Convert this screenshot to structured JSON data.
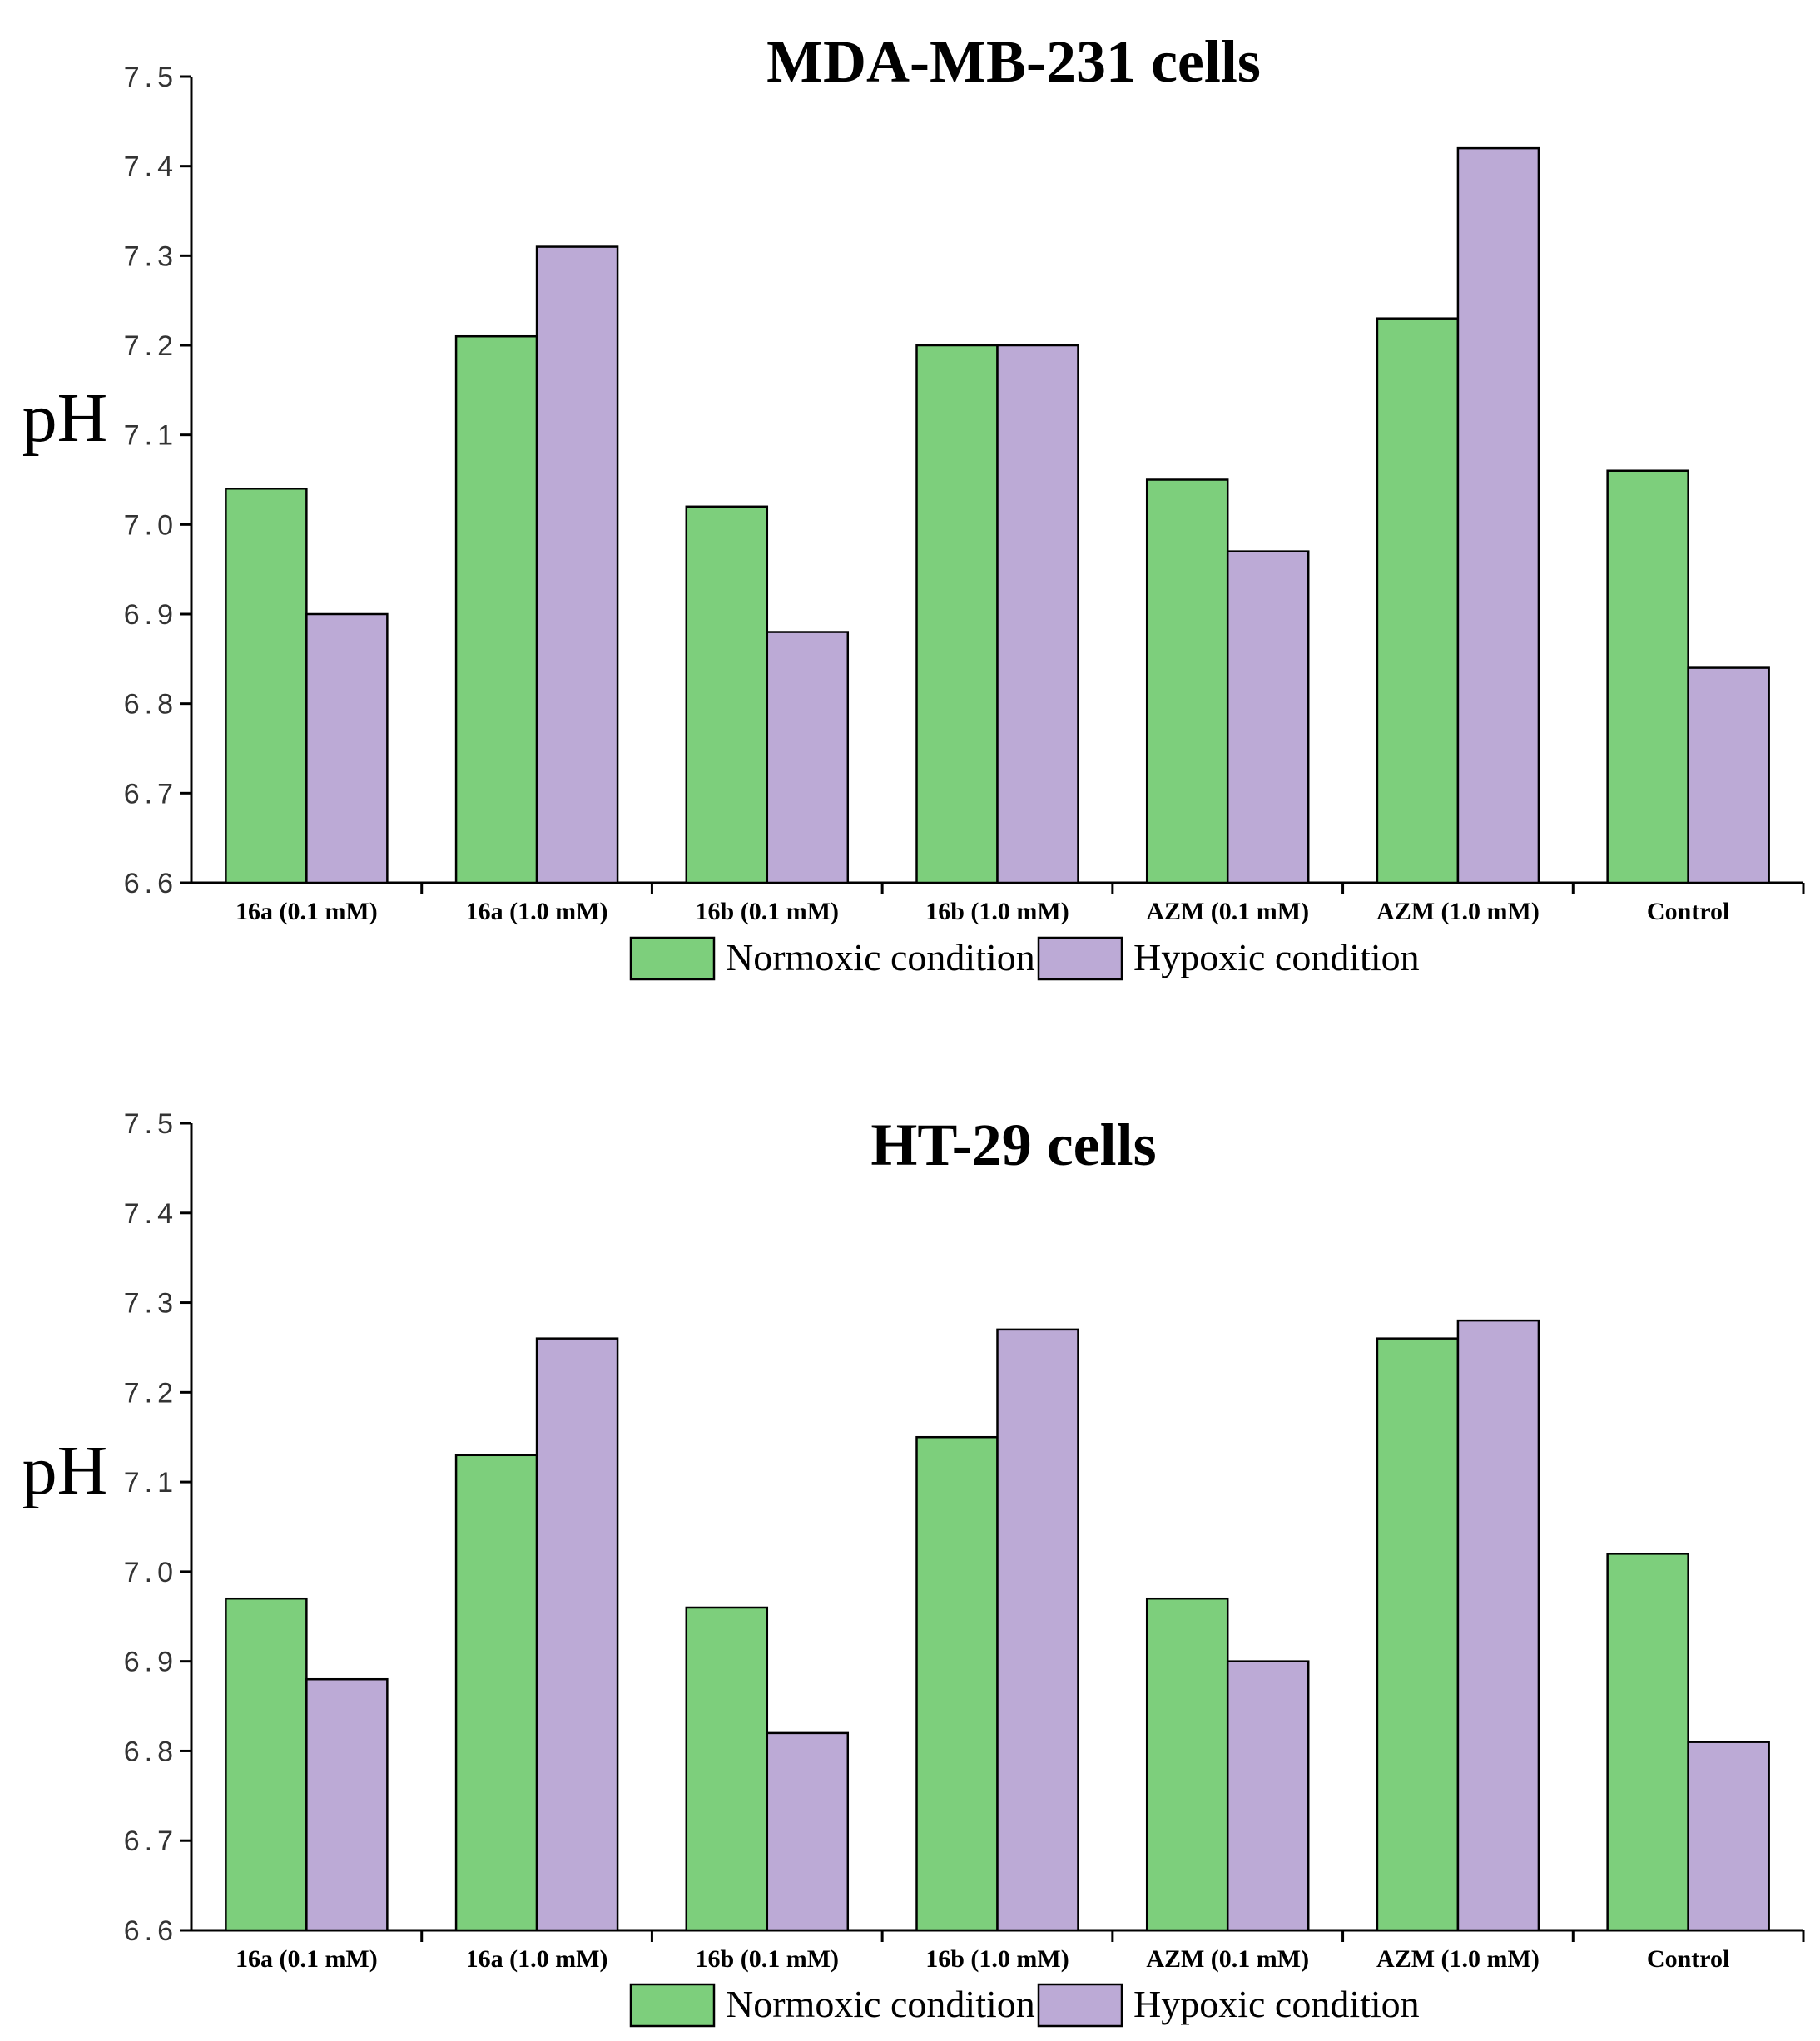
{
  "chart_data": [
    {
      "type": "bar",
      "title": "MDA-MB-231 cells",
      "xlabel": "",
      "ylabel": "pH",
      "ylim": [
        6.6,
        7.5
      ],
      "yticks": [
        "7.5",
        "7.4",
        "7.3",
        "7.2",
        "7.1",
        "7.0",
        "6.9",
        "6.8",
        "6.7",
        "6.6"
      ],
      "categories": [
        "16a (0.1 mM)",
        "16a (1.0 mM)",
        "16b (0.1 mM)",
        "16b (1.0 mM)",
        "AZM (0.1 mM)",
        "AZM (1.0 mM)",
        "Control"
      ],
      "series": [
        {
          "name": "Normoxic condition",
          "color": "#7dcf7c",
          "values": [
            7.04,
            7.21,
            7.02,
            7.2,
            7.05,
            7.23,
            7.06
          ]
        },
        {
          "name": "Hypoxic condition",
          "color": "#bcaad6",
          "values": [
            6.9,
            7.31,
            6.88,
            7.2,
            6.97,
            7.42,
            6.84
          ]
        }
      ],
      "legend": "bottom",
      "grid": false
    },
    {
      "type": "bar",
      "title": "HT-29 cells",
      "xlabel": "",
      "ylabel": "pH",
      "ylim": [
        6.6,
        7.5
      ],
      "yticks": [
        "7.5",
        "7.4",
        "7.3",
        "7.2",
        "7.1",
        "7.0",
        "6.9",
        "6.8",
        "6.7",
        "6.6"
      ],
      "categories": [
        "16a (0.1 mM)",
        "16a (1.0 mM)",
        "16b (0.1 mM)",
        "16b (1.0 mM)",
        "AZM (0.1 mM)",
        "AZM (1.0 mM)",
        "Control"
      ],
      "series": [
        {
          "name": "Normoxic condition",
          "color": "#7dcf7c",
          "values": [
            6.97,
            7.13,
            6.96,
            7.15,
            6.97,
            7.26,
            7.02
          ]
        },
        {
          "name": "Hypoxic condition",
          "color": "#bcaad6",
          "values": [
            6.88,
            7.26,
            6.82,
            7.27,
            6.9,
            7.28,
            6.81
          ]
        }
      ],
      "legend": "bottom",
      "grid": false
    }
  ]
}
